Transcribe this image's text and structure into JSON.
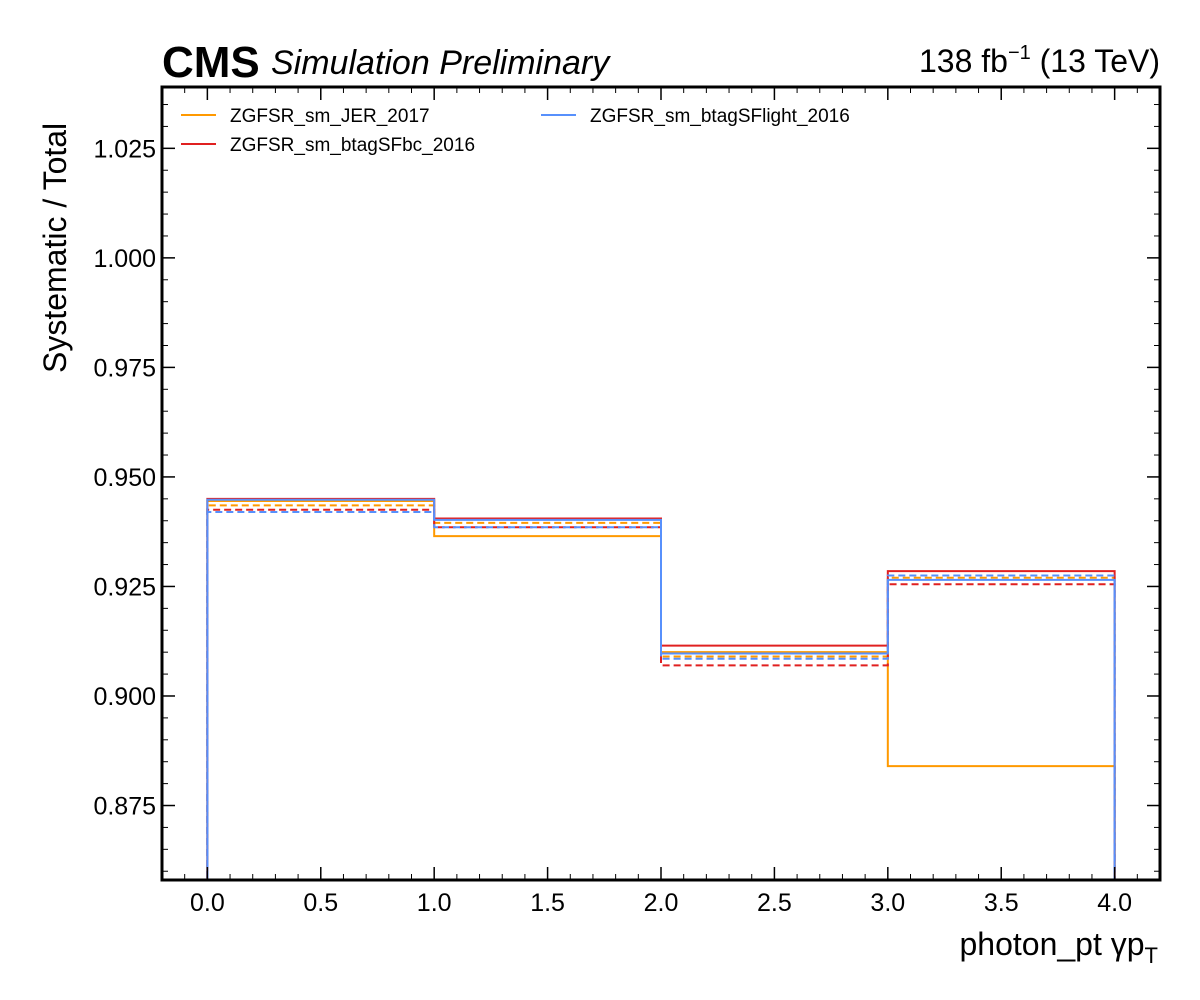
{
  "header": {
    "experiment": "CMS",
    "status": "Simulation Preliminary",
    "lumi_value": "138 fb",
    "lumi_exponent": "−1",
    "energy": " (13 TeV)"
  },
  "chart_data": {
    "type": "line",
    "style": "step",
    "xlabel": "photon_pt   γp",
    "xlabel_subscript": "T",
    "ylabel": "Systematic / Total",
    "xlim": [
      -0.2,
      4.2
    ],
    "ylim": [
      0.858,
      1.039
    ],
    "x_ticks": [
      0.0,
      0.5,
      1.0,
      1.5,
      2.0,
      2.5,
      3.0,
      3.5,
      4.0
    ],
    "x_tick_labels": [
      "0.0",
      "0.5",
      "1.0",
      "1.5",
      "2.0",
      "2.5",
      "3.0",
      "3.5",
      "4.0"
    ],
    "y_ticks": [
      0.875,
      0.9,
      0.925,
      0.95,
      0.975,
      1.0,
      1.025
    ],
    "y_tick_labels": [
      "0.875",
      "0.900",
      "0.925",
      "0.950",
      "0.975",
      "1.000",
      "1.025"
    ],
    "bin_edges": [
      0,
      1,
      2,
      3,
      4
    ],
    "legend_position": "top-left",
    "series": [
      {
        "name": "ZGFSR_sm_JER_2017",
        "color": "#ff9900",
        "up": [
          0.9445,
          0.9365,
          0.91,
          0.884
        ],
        "down": [
          0.9435,
          0.9395,
          0.909,
          0.927
        ]
      },
      {
        "name": "ZGFSR_sm_btagSFbc_2016",
        "color": "#e02020",
        "up": [
          0.945,
          0.9405,
          0.9115,
          0.9285
        ],
        "down": [
          0.9425,
          0.9385,
          0.907,
          0.9255
        ]
      },
      {
        "name": "ZGFSR_sm_btagSFlight_2016",
        "color": "#5790fc",
        "up": [
          0.9448,
          0.9402,
          0.9097,
          0.9265
        ],
        "down": [
          0.942,
          0.9385,
          0.9085,
          0.9275
        ]
      }
    ]
  }
}
